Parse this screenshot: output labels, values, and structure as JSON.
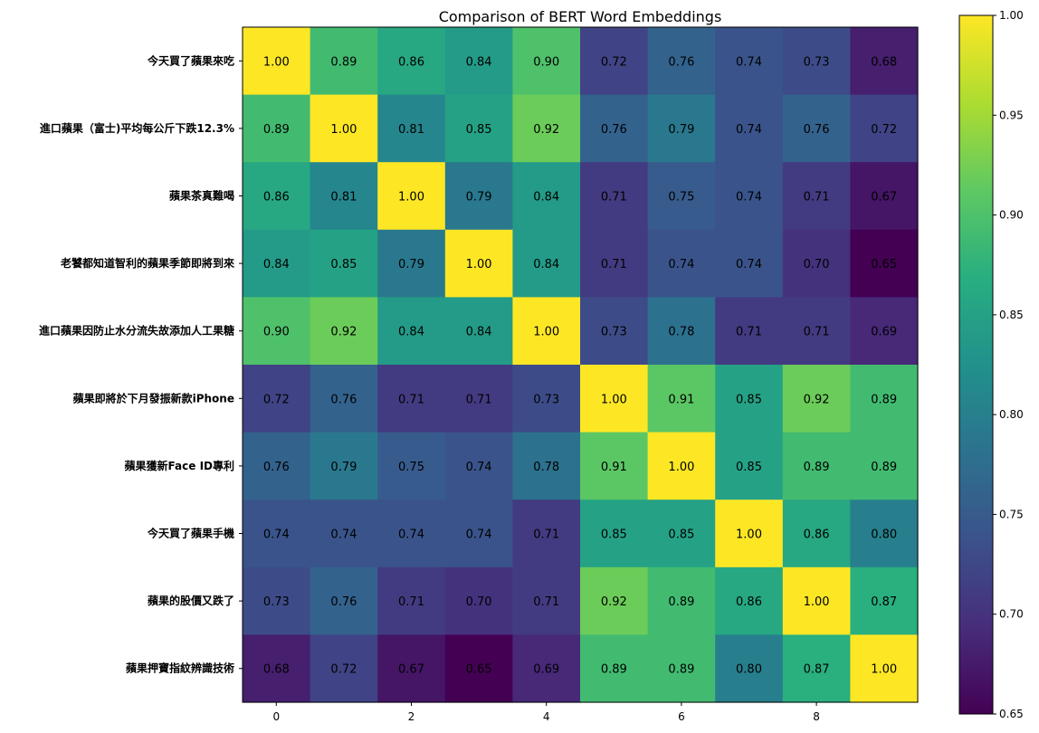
{
  "chart_data": {
    "type": "heatmap",
    "title": "Comparison of BERT Word Embeddings",
    "row_labels": [
      "今天買了蘋果來吃",
      "進口蘋果（富士)平均每公斤下跌12.3%",
      "蘋果茶真難喝",
      "老饕都知道智利的蘋果季節即將到來",
      "進口蘋果因防止水分流失故添加人工果糖",
      "蘋果即將於下月發振新款iPhone",
      "蘋果獲新Face ID專利",
      "今天買了蘋果手機",
      "蘋果的股價又跌了",
      "蘋果押寶指紋辨識技術"
    ],
    "x_ticks": [
      0,
      2,
      4,
      6,
      8
    ],
    "values": [
      [
        1.0,
        0.89,
        0.86,
        0.84,
        0.9,
        0.72,
        0.76,
        0.74,
        0.73,
        0.68
      ],
      [
        0.89,
        1.0,
        0.81,
        0.85,
        0.92,
        0.76,
        0.79,
        0.74,
        0.76,
        0.72
      ],
      [
        0.86,
        0.81,
        1.0,
        0.79,
        0.84,
        0.71,
        0.75,
        0.74,
        0.71,
        0.67
      ],
      [
        0.84,
        0.85,
        0.79,
        1.0,
        0.84,
        0.71,
        0.74,
        0.74,
        0.7,
        0.65
      ],
      [
        0.9,
        0.92,
        0.84,
        0.84,
        1.0,
        0.73,
        0.78,
        0.71,
        0.71,
        0.69
      ],
      [
        0.72,
        0.76,
        0.71,
        0.71,
        0.73,
        1.0,
        0.91,
        0.85,
        0.92,
        0.89
      ],
      [
        0.76,
        0.79,
        0.75,
        0.74,
        0.78,
        0.91,
        1.0,
        0.85,
        0.89,
        0.89
      ],
      [
        0.74,
        0.74,
        0.74,
        0.74,
        0.71,
        0.85,
        0.85,
        1.0,
        0.86,
        0.8
      ],
      [
        0.73,
        0.76,
        0.71,
        0.7,
        0.71,
        0.92,
        0.89,
        0.86,
        1.0,
        0.87
      ],
      [
        0.68,
        0.72,
        0.67,
        0.65,
        0.69,
        0.89,
        0.89,
        0.8,
        0.87,
        1.0
      ]
    ],
    "colormap": "viridis",
    "vmin": 0.65,
    "vmax": 1.0,
    "colorbar_ticks": [
      "0.65",
      "0.70",
      "0.75",
      "0.80",
      "0.85",
      "0.90",
      "0.95",
      "1.00"
    ],
    "value_format": "2 decimals"
  }
}
